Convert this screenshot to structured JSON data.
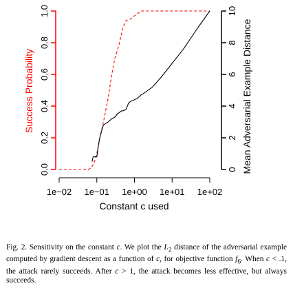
{
  "chart_data": {
    "type": "line",
    "xlabel": "Constant c used",
    "x_scale": "log",
    "xlim": [
      0.01,
      100
    ],
    "x_ticks": [
      0.01,
      0.1,
      1,
      10,
      100
    ],
    "x_tick_labels": [
      "1e−02",
      "1e−01",
      "1e+00",
      "1e+01",
      "1e+02"
    ],
    "y_left": {
      "label": "Success Probability",
      "color": "#ff0000",
      "ylim": [
        0,
        1
      ],
      "ticks": [
        0.0,
        0.2,
        0.4,
        0.6,
        0.8,
        1.0
      ],
      "tick_labels": [
        "0.0",
        "0.2",
        "0.4",
        "0.6",
        "0.8",
        "1.0"
      ]
    },
    "y_right": {
      "label": "Mean Adversarial Example Distance",
      "color": "#000000",
      "ylim": [
        0,
        10
      ],
      "ticks": [
        0,
        2,
        4,
        6,
        8,
        10
      ],
      "tick_labels": [
        "0",
        "2",
        "4",
        "6",
        "8",
        "10"
      ]
    },
    "series": [
      {
        "axis": "left",
        "style": "dashed",
        "color": "#ff0000",
        "x": [
          0.01,
          0.06,
          0.07,
          0.08,
          0.09,
          0.1,
          0.12,
          0.15,
          0.2,
          0.25,
          0.3,
          0.35,
          0.4,
          0.5,
          0.6,
          0.8,
          1.0,
          1.5,
          2,
          5,
          10,
          50,
          100
        ],
        "y": [
          0.0,
          0.0,
          0.01,
          0.03,
          0.06,
          0.1,
          0.2,
          0.3,
          0.45,
          0.6,
          0.7,
          0.75,
          0.8,
          0.9,
          0.94,
          0.95,
          0.97,
          1.0,
          1.0,
          1.0,
          1.0,
          1.0,
          1.0
        ]
      },
      {
        "axis": "right",
        "style": "solid",
        "color": "#000000",
        "x": [
          0.075,
          0.08,
          0.09,
          0.1,
          0.11,
          0.12,
          0.13,
          0.14,
          0.15,
          0.17,
          0.2,
          0.25,
          0.3,
          0.35,
          0.4,
          0.45,
          0.5,
          0.6,
          0.7,
          0.8,
          1.0,
          1.2,
          1.5,
          2,
          3,
          5,
          10,
          20,
          50,
          100
        ],
        "y": [
          0.5,
          0.8,
          0.8,
          0.8,
          1.5,
          2.0,
          2.3,
          2.6,
          2.8,
          2.9,
          3.0,
          3.2,
          3.3,
          3.5,
          3.6,
          3.7,
          3.7,
          3.8,
          4.2,
          4.3,
          4.4,
          4.5,
          4.7,
          4.9,
          5.2,
          5.8,
          6.7,
          7.6,
          9.0,
          10.0
        ]
      }
    ]
  },
  "caption": {
    "lead": "Fig. 2.  Sensitivity on the constant ",
    "c1": "c",
    "t1": ". We plot the ",
    "L": "L",
    "L_sub": "2",
    "t2": " distance of the adversarial example computed by gradient descent as a function of ",
    "c2": "c",
    "t3": ", for objective function ",
    "f": "f",
    "f_sub": "6",
    "t4": ". When ",
    "c3": "c",
    "t5": " < .1, the attack rarely succeeds. After ",
    "c4": "c",
    "t6": " > 1, the attack becomes less effective, but always succeeds."
  }
}
